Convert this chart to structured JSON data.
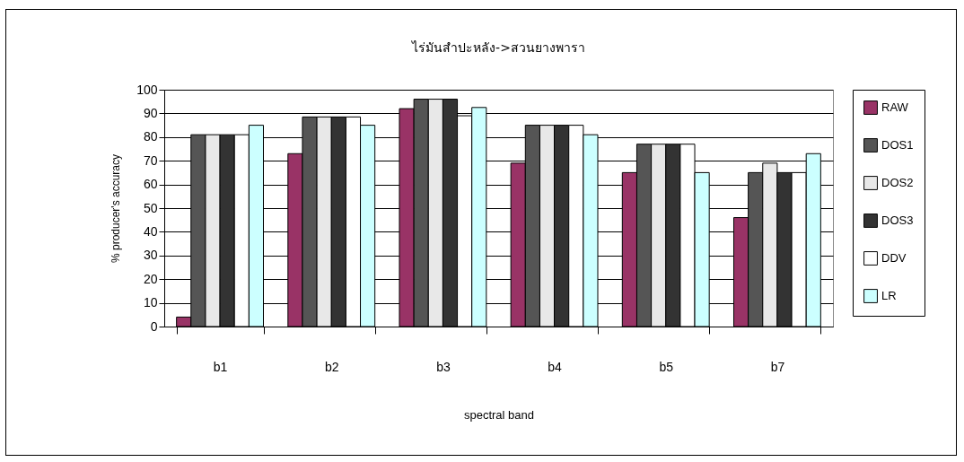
{
  "chart_data": {
    "type": "bar",
    "title": "ไร่มันสำปะหลัง->สวนยางพารา",
    "xlabel": "spectral band",
    "ylabel": "% producer's accuracy",
    "categories": [
      "b1",
      "b2",
      "b3",
      "b4",
      "b5",
      "b7"
    ],
    "series": [
      {
        "name": "RAW",
        "color": "#993366",
        "values": [
          4,
          73,
          92,
          69,
          65,
          46
        ]
      },
      {
        "name": "DOS1",
        "color": "#555555",
        "values": [
          81,
          88.5,
          96,
          85,
          77,
          65
        ]
      },
      {
        "name": "DOS2",
        "color": "#e8e8e8",
        "values": [
          81,
          88.5,
          96,
          85,
          77,
          69
        ]
      },
      {
        "name": "DOS3",
        "color": "#333333",
        "values": [
          81,
          88.5,
          96,
          85,
          77,
          65
        ]
      },
      {
        "name": "DDV",
        "color": "#ffffff",
        "values": [
          81,
          88.5,
          89,
          85,
          77,
          65
        ]
      },
      {
        "name": "LR",
        "color": "#ccffff",
        "values": [
          85,
          85,
          92.5,
          81,
          65,
          73
        ]
      }
    ],
    "ylim": [
      0,
      100
    ],
    "yticks": [
      0,
      10,
      20,
      30,
      40,
      50,
      60,
      70,
      80,
      90,
      100
    ],
    "grid": "y",
    "legend": "right"
  }
}
